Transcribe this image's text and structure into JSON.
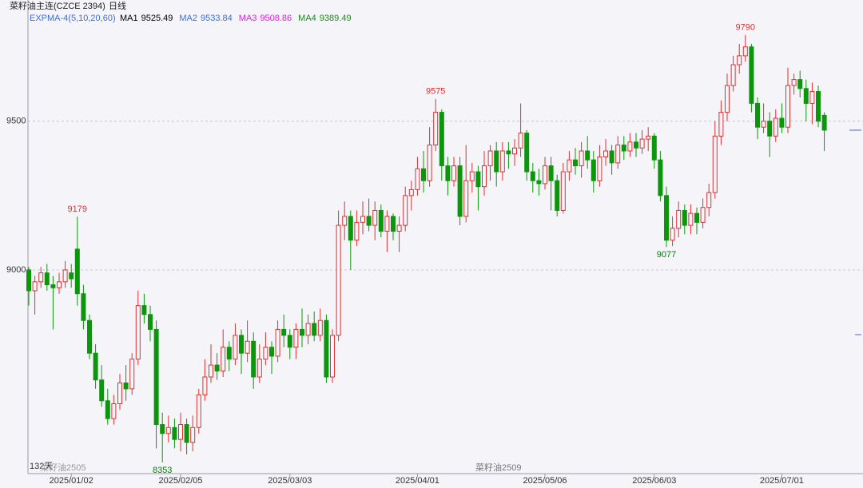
{
  "chart_data": {
    "type": "candlestick",
    "title": "菜籽油主连(CZCE 2394)",
    "period": "日线",
    "indicator_title": "EXPMA-4(5,10,20,60)",
    "indicators": [
      {
        "name": "MA1",
        "value": 9525.49,
        "color": "#000000"
      },
      {
        "name": "MA2",
        "value": 9533.84,
        "color": "#3a6fd8"
      },
      {
        "name": "MA3",
        "value": 9508.86,
        "color": "#e020e0"
      },
      {
        "name": "MA4",
        "value": 9389.49,
        "color": "#1a8a1a"
      }
    ],
    "day_count": "132天",
    "contract_left": "菜籽油2505",
    "contract_mid": "菜籽油2509",
    "up_color": "#e03030",
    "down_color": "#0c960c",
    "ylim": [
      8315,
      9870
    ],
    "yticks": [
      9000,
      9500
    ],
    "grid": true,
    "categories": [
      null,
      null,
      null,
      null,
      null,
      null,
      null,
      "2025/01/02",
      null,
      null,
      null,
      null,
      null,
      null,
      null,
      null,
      null,
      null,
      null,
      null,
      null,
      null,
      null,
      null,
      null,
      "2025/02/05",
      null,
      null,
      null,
      null,
      null,
      null,
      null,
      null,
      null,
      null,
      null,
      null,
      null,
      null,
      null,
      null,
      null,
      "2025/03/03",
      null,
      null,
      null,
      null,
      null,
      null,
      null,
      null,
      null,
      null,
      null,
      null,
      null,
      null,
      null,
      null,
      null,
      null,
      null,
      null,
      "2025/04/01",
      null,
      null,
      null,
      null,
      null,
      null,
      null,
      null,
      null,
      null,
      null,
      null,
      null,
      null,
      null,
      null,
      null,
      null,
      null,
      null,
      "2025/05/06",
      null,
      null,
      null,
      null,
      null,
      null,
      null,
      null,
      null,
      null,
      null,
      null,
      null,
      null,
      null,
      null,
      null,
      "2025/06/03",
      null,
      null,
      null,
      null,
      null,
      null,
      null,
      null,
      null,
      null,
      null,
      null,
      null,
      null,
      null,
      null,
      null,
      null,
      null,
      null,
      "2025/07/01",
      null,
      null,
      null,
      null,
      null,
      null,
      null
    ],
    "open": [
      9000,
      8930,
      8960,
      8990,
      8950,
      8940,
      8960,
      8990,
      9070,
      8920,
      8830,
      8720,
      8630,
      8560,
      8500,
      8550,
      8620,
      8600,
      8700,
      8880,
      8850,
      8800,
      8480,
      8450,
      8470,
      8430,
      8480,
      8420,
      8470,
      8580,
      8640,
      8680,
      8660,
      8740,
      8700,
      8780,
      8720,
      8760,
      8640,
      8700,
      8740,
      8710,
      8800,
      8780,
      8740,
      8800,
      8780,
      8820,
      8780,
      8830,
      8640,
      8780,
      9150,
      9180,
      9100,
      9160,
      9180,
      9150,
      9200,
      9130,
      9180,
      9130,
      9150,
      9250,
      9270,
      9340,
      9300,
      9420,
      9530,
      9350,
      9300,
      9350,
      9180,
      9300,
      9330,
      9280,
      9350,
      9400,
      9330,
      9400,
      9390,
      9410,
      9460,
      9330,
      9300,
      9290,
      9350,
      9300,
      9200,
      9330,
      9370,
      9350,
      9400,
      9370,
      9300,
      9380,
      9400,
      9360,
      9420,
      9400,
      9430,
      9410,
      9440,
      9450,
      9370,
      9250,
      9100,
      9140,
      9200,
      9150,
      9190,
      9160,
      9210,
      9260,
      9450,
      9530,
      9620,
      9690,
      9720,
      9750,
      9560,
      9480,
      9500,
      9450,
      9510,
      9480,
      9620,
      9640,
      9610,
      9560,
      9600,
      9520
    ],
    "high": [
      9010,
      8980,
      9010,
      9020,
      8980,
      8990,
      9030,
      9020,
      9179,
      8950,
      8850,
      8750,
      8680,
      8600,
      8580,
      8650,
      8680,
      8720,
      8930,
      8920,
      8880,
      8830,
      8520,
      8510,
      8500,
      8520,
      8500,
      8510,
      8600,
      8700,
      8750,
      8720,
      8800,
      8760,
      8820,
      8800,
      8830,
      8790,
      8750,
      8790,
      8760,
      8830,
      8850,
      8800,
      8820,
      8870,
      8850,
      8860,
      8870,
      8850,
      8800,
      9200,
      9230,
      9200,
      9200,
      9230,
      9240,
      9230,
      9220,
      9200,
      9190,
      9180,
      9280,
      9300,
      9380,
      9400,
      9480,
      9575,
      9540,
      9380,
      9380,
      9380,
      9420,
      9360,
      9350,
      9400,
      9420,
      9430,
      9430,
      9430,
      9440,
      9560,
      9470,
      9360,
      9340,
      9380,
      9380,
      9320,
      9360,
      9400,
      9410,
      9430,
      9450,
      9400,
      9420,
      9440,
      9420,
      9450,
      9450,
      9460,
      9460,
      9470,
      9480,
      9460,
      9400,
      9280,
      9180,
      9230,
      9220,
      9220,
      9210,
      9240,
      9290,
      9500,
      9570,
      9660,
      9720,
      9760,
      9790,
      9760,
      9580,
      9560,
      9530,
      9540,
      9560,
      9680,
      9660,
      9670,
      9640,
      9630,
      9620,
      9530
    ],
    "low": [
      8880,
      8850,
      8940,
      8930,
      8800,
      8920,
      8940,
      8940,
      8880,
      8800,
      8700,
      8600,
      8540,
      8480,
      8480,
      8530,
      8560,
      8580,
      8680,
      8820,
      8760,
      8400,
      8353,
      8420,
      8400,
      8390,
      8380,
      8390,
      8450,
      8560,
      8620,
      8630,
      8640,
      8660,
      8680,
      8650,
      8690,
      8600,
      8620,
      8680,
      8650,
      8690,
      8740,
      8700,
      8700,
      8740,
      8750,
      8760,
      8760,
      8620,
      8620,
      8760,
      9100,
      9000,
      9080,
      9120,
      9130,
      9100,
      9110,
      9060,
      9100,
      9060,
      9130,
      9200,
      9250,
      9260,
      9280,
      9400,
      9300,
      9250,
      9280,
      9150,
      9160,
      9260,
      9200,
      9250,
      9300,
      9280,
      9300,
      9340,
      9350,
      9380,
      9300,
      9260,
      9250,
      9270,
      9200,
      9180,
      9190,
      9300,
      9320,
      9310,
      9340,
      9260,
      9280,
      9350,
      9320,
      9340,
      9370,
      9380,
      9380,
      9390,
      9400,
      9340,
      9230,
      9077,
      9080,
      9110,
      9120,
      9120,
      9120,
      9140,
      9180,
      9240,
      9420,
      9500,
      9600,
      9660,
      9700,
      9530,
      9440,
      9460,
      9380,
      9430,
      9460,
      9460,
      9590,
      9580,
      9500,
      9490,
      9480,
      9400
    ],
    "close": [
      8930,
      8960,
      8990,
      8950,
      8940,
      8960,
      9000,
      8970,
      8920,
      8830,
      8720,
      8630,
      8560,
      8500,
      8550,
      8620,
      8600,
      8700,
      8880,
      8850,
      8800,
      8480,
      8450,
      8470,
      8430,
      8480,
      8420,
      8470,
      8580,
      8640,
      8680,
      8660,
      8740,
      8700,
      8780,
      8720,
      8760,
      8640,
      8700,
      8740,
      8710,
      8800,
      8780,
      8740,
      8800,
      8780,
      8820,
      8780,
      8830,
      8640,
      8780,
      9150,
      9180,
      9100,
      9160,
      9180,
      9150,
      9200,
      9130,
      9180,
      9130,
      9150,
      9250,
      9270,
      9340,
      9300,
      9420,
      9530,
      9350,
      9300,
      9350,
      9180,
      9300,
      9330,
      9280,
      9350,
      9400,
      9330,
      9400,
      9390,
      9410,
      9460,
      9330,
      9300,
      9290,
      9350,
      9300,
      9200,
      9330,
      9370,
      9350,
      9400,
      9370,
      9300,
      9380,
      9400,
      9360,
      9420,
      9400,
      9430,
      9410,
      9440,
      9450,
      9370,
      9250,
      9100,
      9140,
      9200,
      9150,
      9190,
      9160,
      9210,
      9260,
      9450,
      9530,
      9620,
      9690,
      9720,
      9750,
      9560,
      9480,
      9500,
      9450,
      9510,
      9480,
      9620,
      9640,
      9610,
      9560,
      9600,
      9500,
      9470
    ]
  }
}
